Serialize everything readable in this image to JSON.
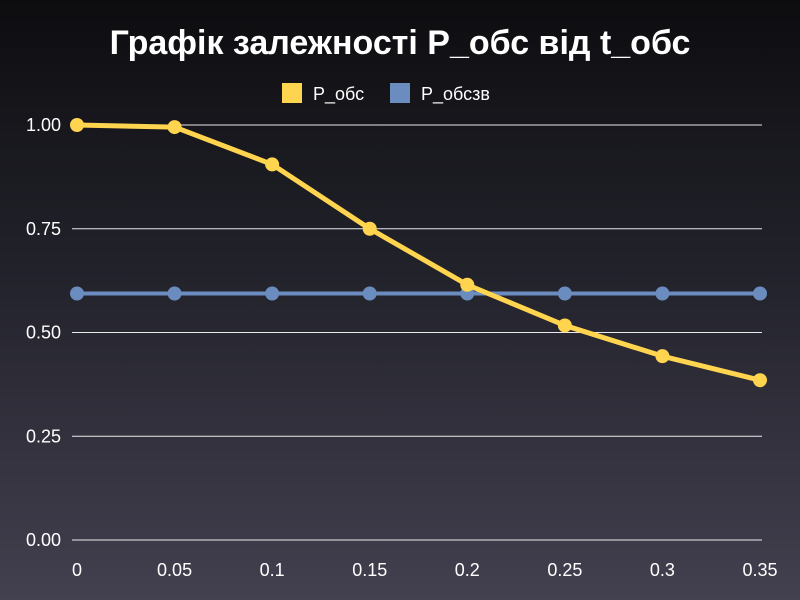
{
  "chart_data": {
    "type": "line",
    "title": "Графік залежності P_обс від t_обс",
    "xlabel": "",
    "ylabel": "",
    "categories": [
      "0",
      "0.05",
      "0.1",
      "0.15",
      "0.2",
      "0.25",
      "0.3",
      "0.35"
    ],
    "x": [
      0,
      0.05,
      0.1,
      0.15,
      0.2,
      0.25,
      0.3,
      0.35
    ],
    "ylim": [
      0,
      1
    ],
    "yticks": [
      "0.00",
      "0.25",
      "0.50",
      "0.75",
      "1.00"
    ],
    "ytick_values": [
      0,
      0.25,
      0.5,
      0.75,
      1.0
    ],
    "grid": true,
    "legend": "top-center",
    "series": [
      {
        "name": "P_обс",
        "color": "#ffd54f",
        "values": [
          1.0,
          0.995,
          0.905,
          0.75,
          0.615,
          0.517,
          0.443,
          0.385
        ]
      },
      {
        "name": "P_обсзв",
        "color": "#6b8cbf",
        "values": [
          0.594,
          0.594,
          0.594,
          0.594,
          0.594,
          0.594,
          0.594,
          0.594
        ]
      }
    ]
  }
}
